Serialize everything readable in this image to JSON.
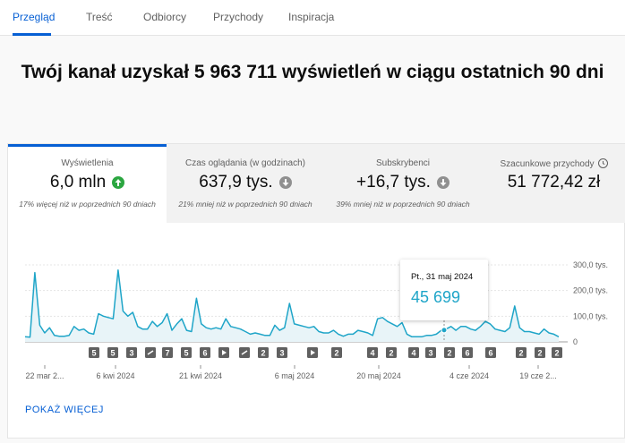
{
  "tabs": [
    "Przegląd",
    "Treść",
    "Odbiorcy",
    "Przychody",
    "Inspiracja"
  ],
  "headline": "Twój kanał uzyskał 5 963 711 wyświetleń w ciągu ostatnich 90 dni",
  "metrics": [
    {
      "title": "Wyświetlenia",
      "value": "6,0 mln",
      "trend": "up",
      "comparison": "17% więcej niż w poprzednich 90 dniach"
    },
    {
      "title": "Czas oglądania (w godzinach)",
      "value": "637,9 tys.",
      "trend": "down",
      "comparison": "21% mniej niż w poprzednich 90 dniach"
    },
    {
      "title": "Subskrybenci",
      "value": "+16,7 tys.",
      "trend": "down",
      "comparison": "39% mniej niż w poprzednich 90 dniach"
    },
    {
      "title": "Szacunkowe przychody",
      "value": "51 772,42 zł",
      "trend": "",
      "comparison": ""
    }
  ],
  "tooltip": {
    "date": "Pt., 31 maj 2024",
    "value": "45 699"
  },
  "show_more": "POKAŻ WIĘCEJ",
  "colors": {
    "accent": "#065fd4",
    "line": "#1fa5c8",
    "up": "#2ba640"
  },
  "chart_data": {
    "type": "area",
    "series": [
      {
        "values": [
          20,
          18,
          270,
          65,
          35,
          55,
          25,
          22,
          22,
          25,
          60,
          45,
          50,
          35,
          30,
          110,
          100,
          95,
          90,
          280,
          120,
          100,
          115,
          60,
          50,
          50,
          80,
          60,
          75,
          110,
          45,
          70,
          90,
          45,
          40,
          170,
          70,
          55,
          50,
          55,
          50,
          90,
          60,
          55,
          50,
          40,
          30,
          35,
          30,
          25,
          25,
          65,
          45,
          55,
          150,
          70,
          65,
          60,
          55,
          60,
          40,
          35,
          35,
          45,
          30,
          22,
          30,
          30,
          45,
          40,
          35,
          25,
          90,
          95,
          80,
          70,
          60,
          75,
          30,
          20,
          20,
          20,
          25,
          25,
          30,
          45,
          50,
          60,
          45,
          60,
          60,
          50,
          45,
          60,
          80,
          70,
          50,
          45,
          40,
          55,
          140,
          55,
          40,
          40,
          35,
          30,
          50,
          35,
          30,
          20
        ]
      }
    ],
    "x_tick_labels": [
      "22 mar 2...",
      "6 kwi 2024",
      "21 kwi 2024",
      "6 maj 2024",
      "20 maj 2024",
      "4 cze 2024",
      "19 cze 2..."
    ],
    "y_tick_labels": [
      "300,0 tys.",
      "200,0 tys.",
      "100,0 tys.",
      "0"
    ],
    "ylim": [
      0,
      300
    ],
    "grid": true,
    "highlight": {
      "label": "Pt., 31 maj 2024",
      "value": 45.699
    },
    "markers": [
      "5",
      "5",
      "3",
      "link",
      "7",
      "5",
      "6",
      "play",
      "link",
      "2",
      "3",
      "play",
      "2",
      "4",
      "2",
      "4",
      "3",
      "2",
      "6",
      "6",
      "2",
      "2",
      "2"
    ]
  }
}
